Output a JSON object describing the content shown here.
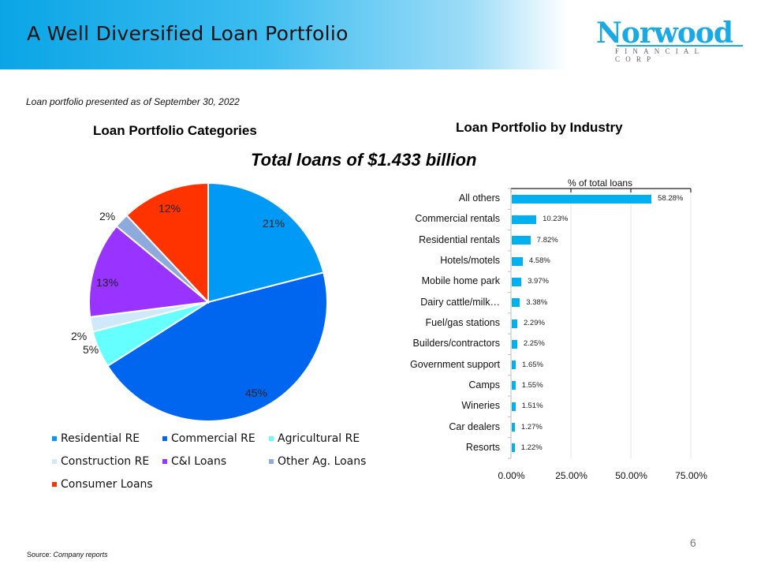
{
  "header": {
    "title": "A Well Diversified Loan Portfolio"
  },
  "logo": {
    "name": "Norwood",
    "subtitle": "FINANCIAL CORP"
  },
  "subtitle": "Loan portfolio presented as of September 30, 2022",
  "total": "Total loans of $1.433 billion",
  "footer": {
    "source_label": "Source:",
    "source_value": "Company reports",
    "page_number": "6"
  },
  "chart_data": [
    {
      "type": "pie",
      "title": "Loan Portfolio Categories",
      "categories": [
        "Residential RE",
        "Commercial RE",
        "Agricultural RE",
        "Construction RE",
        "C&I Loans",
        "Other Ag. Loans",
        "Consumer Loans"
      ],
      "values": [
        21,
        45,
        5,
        2,
        13,
        2,
        12
      ],
      "labels": [
        "21%",
        "45%",
        "5%",
        "2%",
        "13%",
        "2%",
        "12%"
      ],
      "colors": [
        "#0099f5",
        "#0066f0",
        "#66ffff",
        "#cfe9fa",
        "#9933ff",
        "#8ea9db",
        "#ff3300"
      ],
      "legend_position": "bottom"
    },
    {
      "type": "bar",
      "orientation": "horizontal",
      "title": "Loan Portfolio by Industry",
      "xlabel": "% of total loans",
      "categories": [
        "All others",
        "Commercial rentals",
        "Residential rentals",
        "Hotels/motels",
        "Mobile home park",
        "Dairy cattle/milk…",
        "Fuel/gas stations",
        "Builders/contractors",
        "Government support",
        "Camps",
        "Wineries",
        "Car dealers",
        "Resorts"
      ],
      "values": [
        58.28,
        10.23,
        7.82,
        4.58,
        3.97,
        3.38,
        2.29,
        2.25,
        1.65,
        1.55,
        1.51,
        1.27,
        1.22
      ],
      "value_labels": [
        "58.28%",
        "10.23%",
        "7.82%",
        "4.58%",
        "3.97%",
        "3.38%",
        "2.29%",
        "2.25%",
        "1.65%",
        "1.55%",
        "1.51%",
        "1.27%",
        "1.22%"
      ],
      "xticks": [
        "0.00%",
        "25.00%",
        "50.00%",
        "75.00%"
      ],
      "xlim": [
        0,
        75
      ],
      "color": "#00b0f0",
      "grid": true
    }
  ]
}
